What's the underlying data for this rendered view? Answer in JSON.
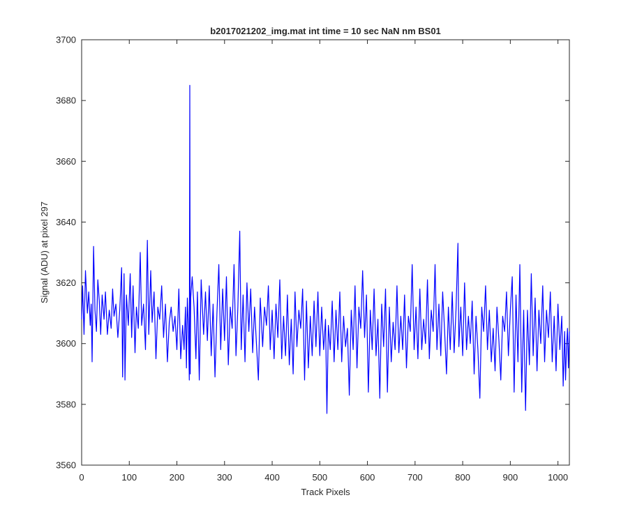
{
  "chart_data": {
    "type": "line",
    "title": "b2017021202_img.mat int time = 10 sec  NaN nm BS01",
    "xlabel": "Track Pixels",
    "ylabel": "Signal (ADU) at pixel 297",
    "xlim": [
      0,
      1024
    ],
    "ylim": [
      3560,
      3700
    ],
    "xticks": [
      0,
      100,
      200,
      300,
      400,
      500,
      600,
      700,
      800,
      900,
      1000
    ],
    "yticks": [
      3560,
      3580,
      3600,
      3620,
      3640,
      3660,
      3680,
      3700
    ],
    "grid": false,
    "legend": "none",
    "series": [
      {
        "color": "#0000ff",
        "anchors": [
          [
            0,
            3608
          ],
          [
            2,
            3619
          ],
          [
            5,
            3603
          ],
          [
            8,
            3624
          ],
          [
            12,
            3610
          ],
          [
            15,
            3617
          ],
          [
            18,
            3606
          ],
          [
            20,
            3613
          ],
          [
            22,
            3594
          ],
          [
            25,
            3632
          ],
          [
            28,
            3611
          ],
          [
            31,
            3604
          ],
          [
            34,
            3621
          ],
          [
            37,
            3614
          ],
          [
            40,
            3603
          ],
          [
            43,
            3616
          ],
          [
            47,
            3608
          ],
          [
            50,
            3617
          ],
          [
            54,
            3603
          ],
          [
            58,
            3611
          ],
          [
            62,
            3605
          ],
          [
            65,
            3618
          ],
          [
            68,
            3609
          ],
          [
            72,
            3613
          ],
          [
            76,
            3602
          ],
          [
            80,
            3611
          ],
          [
            84,
            3625
          ],
          [
            86,
            3589
          ],
          [
            89,
            3623
          ],
          [
            91,
            3588
          ],
          [
            94,
            3616
          ],
          [
            98,
            3606
          ],
          [
            102,
            3623
          ],
          [
            105,
            3602
          ],
          [
            108,
            3619
          ],
          [
            112,
            3597
          ],
          [
            115,
            3612
          ],
          [
            119,
            3605
          ],
          [
            123,
            3630
          ],
          [
            126,
            3606
          ],
          [
            130,
            3613
          ],
          [
            134,
            3598
          ],
          [
            138,
            3634
          ],
          [
            141,
            3603
          ],
          [
            145,
            3624
          ],
          [
            148,
            3607
          ],
          [
            152,
            3617
          ],
          [
            156,
            3595
          ],
          [
            160,
            3612
          ],
          [
            164,
            3608
          ],
          [
            168,
            3619
          ],
          [
            172,
            3602
          ],
          [
            176,
            3613
          ],
          [
            180,
            3594
          ],
          [
            184,
            3607
          ],
          [
            188,
            3612
          ],
          [
            192,
            3604
          ],
          [
            196,
            3609
          ],
          [
            200,
            3598
          ],
          [
            204,
            3618
          ],
          [
            208,
            3595
          ],
          [
            212,
            3606
          ],
          [
            215,
            3598
          ],
          [
            218,
            3612
          ],
          [
            220,
            3592
          ],
          [
            222,
            3615
          ],
          [
            224,
            3606
          ],
          [
            226,
            3588
          ],
          [
            227,
            3685
          ],
          [
            228,
            3590
          ],
          [
            229,
            3615
          ],
          [
            232,
            3622
          ],
          [
            236,
            3612
          ],
          [
            240,
            3595
          ],
          [
            243,
            3617
          ],
          [
            247,
            3588
          ],
          [
            251,
            3621
          ],
          [
            256,
            3603
          ],
          [
            260,
            3617
          ],
          [
            264,
            3601
          ],
          [
            268,
            3619
          ],
          [
            272,
            3596
          ],
          [
            276,
            3613
          ],
          [
            280,
            3589
          ],
          [
            284,
            3610
          ],
          [
            288,
            3626
          ],
          [
            292,
            3598
          ],
          [
            296,
            3618
          ],
          [
            300,
            3601
          ],
          [
            304,
            3622
          ],
          [
            308,
            3593
          ],
          [
            312,
            3612
          ],
          [
            316,
            3605
          ],
          [
            320,
            3626
          ],
          [
            324,
            3596
          ],
          [
            328,
            3612
          ],
          [
            332,
            3637
          ],
          [
            335,
            3598
          ],
          [
            339,
            3616
          ],
          [
            343,
            3594
          ],
          [
            347,
            3620
          ],
          [
            351,
            3604
          ],
          [
            355,
            3618
          ],
          [
            359,
            3597
          ],
          [
            363,
            3612
          ],
          [
            367,
            3600
          ],
          [
            371,
            3588
          ],
          [
            375,
            3615
          ],
          [
            380,
            3599
          ],
          [
            384,
            3612
          ],
          [
            388,
            3606
          ],
          [
            392,
            3619
          ],
          [
            396,
            3598
          ],
          [
            400,
            3611
          ],
          [
            404,
            3595
          ],
          [
            408,
            3613
          ],
          [
            412,
            3602
          ],
          [
            416,
            3621
          ],
          [
            420,
            3595
          ],
          [
            424,
            3609
          ],
          [
            428,
            3596
          ],
          [
            432,
            3616
          ],
          [
            436,
            3593
          ],
          [
            440,
            3608
          ],
          [
            444,
            3590
          ],
          [
            448,
            3617
          ],
          [
            452,
            3599
          ],
          [
            456,
            3611
          ],
          [
            460,
            3605
          ],
          [
            464,
            3618
          ],
          [
            468,
            3588
          ],
          [
            472,
            3614
          ],
          [
            476,
            3592
          ],
          [
            480,
            3609
          ],
          [
            484,
            3596
          ],
          [
            488,
            3614
          ],
          [
            492,
            3599
          ],
          [
            496,
            3617
          ],
          [
            500,
            3596
          ],
          [
            504,
            3612
          ],
          [
            508,
            3598
          ],
          [
            512,
            3608
          ],
          [
            515,
            3577
          ],
          [
            518,
            3606
          ],
          [
            522,
            3598
          ],
          [
            526,
            3614
          ],
          [
            530,
            3594
          ],
          [
            534,
            3611
          ],
          [
            538,
            3598
          ],
          [
            542,
            3617
          ],
          [
            546,
            3594
          ],
          [
            550,
            3609
          ],
          [
            554,
            3599
          ],
          [
            558,
            3605
          ],
          [
            562,
            3583
          ],
          [
            566,
            3611
          ],
          [
            570,
            3598
          ],
          [
            574,
            3619
          ],
          [
            578,
            3592
          ],
          [
            582,
            3612
          ],
          [
            586,
            3605
          ],
          [
            590,
            3624
          ],
          [
            594,
            3602
          ],
          [
            598,
            3616
          ],
          [
            602,
            3584
          ],
          [
            606,
            3611
          ],
          [
            610,
            3598
          ],
          [
            614,
            3618
          ],
          [
            618,
            3596
          ],
          [
            622,
            3608
          ],
          [
            626,
            3582
          ],
          [
            630,
            3613
          ],
          [
            634,
            3599
          ],
          [
            638,
            3618
          ],
          [
            642,
            3584
          ],
          [
            646,
            3612
          ],
          [
            650,
            3594
          ],
          [
            654,
            3607
          ],
          [
            658,
            3598
          ],
          [
            662,
            3619
          ],
          [
            666,
            3597
          ],
          [
            670,
            3609
          ],
          [
            674,
            3598
          ],
          [
            678,
            3616
          ],
          [
            682,
            3592
          ],
          [
            686,
            3609
          ],
          [
            690,
            3604
          ],
          [
            694,
            3626
          ],
          [
            698,
            3598
          ],
          [
            702,
            3612
          ],
          [
            706,
            3595
          ],
          [
            710,
            3618
          ],
          [
            714,
            3598
          ],
          [
            718,
            3608
          ],
          [
            722,
            3600
          ],
          [
            726,
            3621
          ],
          [
            730,
            3595
          ],
          [
            734,
            3611
          ],
          [
            738,
            3604
          ],
          [
            742,
            3626
          ],
          [
            746,
            3598
          ],
          [
            750,
            3613
          ],
          [
            754,
            3596
          ],
          [
            758,
            3617
          ],
          [
            762,
            3604
          ],
          [
            766,
            3590
          ],
          [
            770,
            3612
          ],
          [
            774,
            3598
          ],
          [
            778,
            3617
          ],
          [
            782,
            3597
          ],
          [
            786,
            3611
          ],
          [
            790,
            3633
          ],
          [
            792,
            3599
          ],
          [
            796,
            3612
          ],
          [
            800,
            3596
          ],
          [
            804,
            3620
          ],
          [
            808,
            3598
          ],
          [
            812,
            3609
          ],
          [
            816,
            3600
          ],
          [
            820,
            3614
          ],
          [
            824,
            3590
          ],
          [
            828,
            3609
          ],
          [
            832,
            3598
          ],
          [
            836,
            3582
          ],
          [
            840,
            3612
          ],
          [
            844,
            3604
          ],
          [
            848,
            3619
          ],
          [
            852,
            3598
          ],
          [
            856,
            3611
          ],
          [
            860,
            3594
          ],
          [
            864,
            3605
          ],
          [
            868,
            3591
          ],
          [
            872,
            3612
          ],
          [
            876,
            3601
          ],
          [
            880,
            3588
          ],
          [
            884,
            3609
          ],
          [
            888,
            3604
          ],
          [
            892,
            3617
          ],
          [
            896,
            3596
          ],
          [
            900,
            3611
          ],
          [
            904,
            3622
          ],
          [
            908,
            3584
          ],
          [
            912,
            3616
          ],
          [
            916,
            3594
          ],
          [
            920,
            3626
          ],
          [
            924,
            3584
          ],
          [
            928,
            3611
          ],
          [
            932,
            3578
          ],
          [
            936,
            3611
          ],
          [
            940,
            3593
          ],
          [
            944,
            3623
          ],
          [
            948,
            3596
          ],
          [
            952,
            3615
          ],
          [
            956,
            3591
          ],
          [
            960,
            3611
          ],
          [
            964,
            3600
          ],
          [
            968,
            3619
          ],
          [
            972,
            3594
          ],
          [
            976,
            3611
          ],
          [
            980,
            3602
          ],
          [
            984,
            3617
          ],
          [
            988,
            3594
          ],
          [
            992,
            3609
          ],
          [
            996,
            3591
          ],
          [
            1000,
            3613
          ],
          [
            1004,
            3598
          ],
          [
            1008,
            3609
          ],
          [
            1011,
            3586
          ],
          [
            1014,
            3604
          ],
          [
            1016,
            3588
          ],
          [
            1018,
            3599
          ],
          [
            1020,
            3605
          ],
          [
            1022,
            3592
          ],
          [
            1024,
            3604
          ]
        ]
      }
    ]
  }
}
